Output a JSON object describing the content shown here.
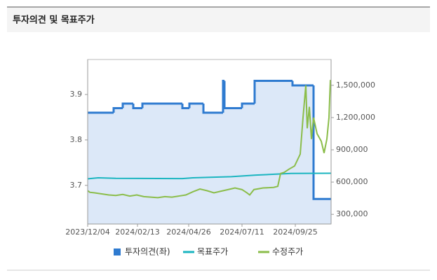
{
  "header": {
    "title": "투자의견 및 목표주가"
  },
  "chart_data": {
    "type": "line",
    "xlim": [
      "2023/12/04",
      "2024/11/15"
    ],
    "xticks": [
      "2023/12/04",
      "2024/02/13",
      "2024/04/26",
      "2024/07/11",
      "2024/09/25"
    ],
    "ylim": [
      3.615,
      3.977
    ],
    "yticks": [
      3.7,
      3.8,
      3.9
    ],
    "y2lim": [
      210000,
      1740000
    ],
    "y2ticks": [
      {
        "value": 300000,
        "label": "300,000"
      },
      {
        "value": 600000,
        "label": "600,000"
      },
      {
        "value": 900000,
        "label": "900,000"
      },
      {
        "value": 1200000,
        "label": "1,200,000"
      },
      {
        "value": 1500000,
        "label": "1,500,000"
      }
    ],
    "series": [
      {
        "name": "투자의견(좌)",
        "color": "#2f7bd0",
        "area_color": "#dce8f8",
        "step": true,
        "x": [
          "2023/12/04",
          "2024/01/10",
          "2024/01/23",
          "2024/02/07",
          "2024/02/20",
          "2024/04/17",
          "2024/04/27",
          "2024/05/17",
          "2024/06/14",
          "2024/06/16",
          "2024/07/11",
          "2024/07/29",
          "2024/09/21",
          "2024/10/21",
          "2024/11/15"
        ],
        "values": [
          3.86,
          3.87,
          3.88,
          3.87,
          3.88,
          3.87,
          3.88,
          3.86,
          3.93,
          3.87,
          3.88,
          3.93,
          3.92,
          3.67,
          3.67
        ]
      },
      {
        "name": "목표주가",
        "color": "#1bb5c0",
        "axis": "y2",
        "x": [
          "2023/12/04",
          "2023/12/19",
          "2024/01/13",
          "2024/04/17",
          "2024/05/02",
          "2024/06/26",
          "2024/07/31",
          "2024/09/19",
          "2024/11/15"
        ],
        "values": [
          630000,
          640000,
          635000,
          632000,
          640000,
          650000,
          665000,
          680000,
          682000
        ]
      },
      {
        "name": "수정주가",
        "color": "#8bbd4a",
        "axis": "y2",
        "x": [
          "2023/12/04",
          "2023/12/07",
          "2023/12/14",
          "2023/12/24",
          "2024/01/03",
          "2024/01/13",
          "2024/01/23",
          "2024/02/02",
          "2024/02/12",
          "2024/02/22",
          "2024/03/03",
          "2024/03/13",
          "2024/03/23",
          "2024/04/02",
          "2024/04/12",
          "2024/04/22",
          "2024/05/02",
          "2024/05/12",
          "2024/05/22",
          "2024/06/01",
          "2024/06/11",
          "2024/06/21",
          "2024/07/01",
          "2024/07/11",
          "2024/07/18",
          "2024/07/22",
          "2024/07/28",
          "2024/08/10",
          "2024/08/25",
          "2024/08/31",
          "2024/09/04",
          "2024/09/09",
          "2024/09/16",
          "2024/09/24",
          "2024/10/02",
          "2024/10/06",
          "2024/10/10",
          "2024/10/12",
          "2024/10/15",
          "2024/10/18",
          "2024/10/21",
          "2024/10/26",
          "2024/11/01",
          "2024/11/05",
          "2024/11/09",
          "2024/11/12",
          "2024/11/14"
        ],
        "values": [
          520000,
          505000,
          500000,
          490000,
          480000,
          475000,
          485000,
          470000,
          480000,
          465000,
          460000,
          455000,
          465000,
          460000,
          470000,
          480000,
          510000,
          535000,
          520000,
          500000,
          515000,
          530000,
          545000,
          530000,
          500000,
          480000,
          530000,
          545000,
          550000,
          560000,
          680000,
          690000,
          720000,
          750000,
          860000,
          1200000,
          1500000,
          1100000,
          1300000,
          1000000,
          1200000,
          1050000,
          980000,
          870000,
          1000000,
          1200000,
          1550000
        ]
      }
    ]
  }
}
